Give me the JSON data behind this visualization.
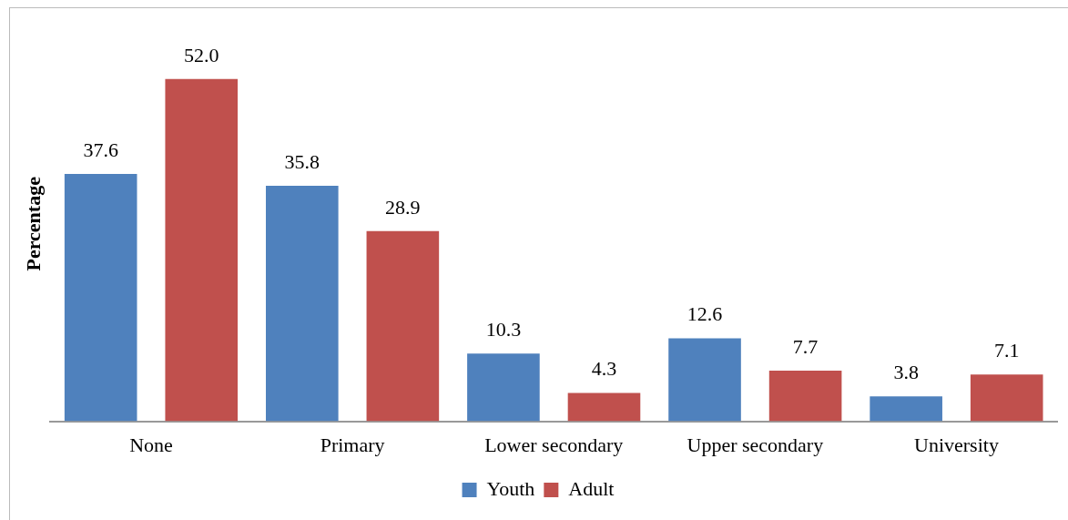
{
  "chart_data": {
    "type": "bar",
    "ylabel": "Percentage",
    "categories": [
      "None",
      "Primary",
      "Lower secondary",
      "Upper secondary",
      "University"
    ],
    "series": [
      {
        "name": "Youth",
        "color": "#4f81bd",
        "values": [
          37.6,
          35.8,
          10.3,
          12.6,
          3.8
        ],
        "value_labels": [
          "37.6",
          "35.8",
          "10.3",
          "12.6",
          "3.8"
        ]
      },
      {
        "name": "Adult",
        "color": "#c0504d",
        "values": [
          52.0,
          28.9,
          4.3,
          7.7,
          7.1
        ],
        "value_labels": [
          "52.0",
          "28.9",
          "4.3",
          "7.7",
          "7.1"
        ]
      }
    ],
    "grid": false,
    "legend": "bottom"
  }
}
